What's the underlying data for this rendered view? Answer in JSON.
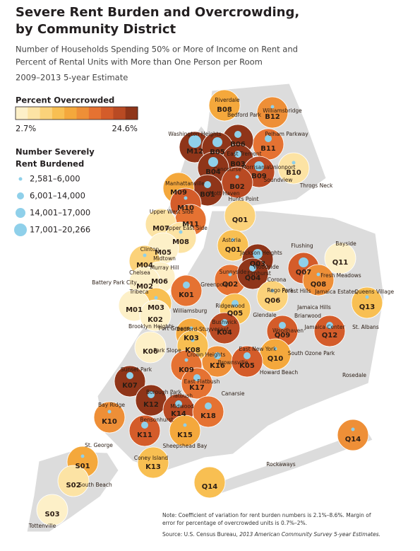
{
  "header": {
    "title_lines": [
      "Severe Rent Burden and Overcrowding,",
      "by Community District"
    ],
    "subtitle_lines": [
      "Number of Households Spending 50% or More of Income on Rent and",
      "Percent of Rental Units with More than One Person per Room"
    ],
    "estimate": "2009–2013 5-year Estimate"
  },
  "legend": {
    "color_title": "Percent Overcrowded",
    "colors": [
      "#fdf0c8",
      "#fce3a4",
      "#fbd27a",
      "#f8bf52",
      "#f4a83c",
      "#ee8f37",
      "#e57232",
      "#d45c2a",
      "#b94a23",
      "#8f3519"
    ],
    "min_label": "2.7%",
    "max_label": "24.6%",
    "size_title_lines": [
      "Number Severely",
      "Rent Burdened"
    ],
    "size_items": [
      "2,581–6,000",
      "6,001–14,000",
      "14,001–17,000",
      "17,001–20,266"
    ],
    "bubble_color": "#8fd0ea"
  },
  "districts": [
    "B08",
    "B12",
    "B11",
    "B06",
    "M12",
    "B05",
    "B03",
    "B04",
    "B10",
    "B09",
    "B02",
    "B01",
    "M09",
    "M10",
    "M11",
    "M07",
    "M08",
    "Q01",
    "Q01",
    "Q03",
    "M05",
    "M04",
    "M06",
    "M02",
    "M03",
    "M01",
    "Q02",
    "Q04",
    "Q07",
    "Q11",
    "K01",
    "Q08",
    "Q06",
    "Q05",
    "Q13",
    "K02",
    "K03",
    "K04",
    "Q09",
    "Q12",
    "K06",
    "K16",
    "K08",
    "Q10",
    "K09",
    "K05",
    "K07",
    "K17",
    "K12",
    "K14",
    "K18",
    "K10",
    "K11",
    "K15",
    "K13",
    "Q14",
    "S01",
    "S02",
    "S03",
    "Q14"
  ],
  "neighborhoods": [
    "Riverdale",
    "Williamsbridge",
    "Bedford Park",
    "Washington Heights",
    "Pelham Parkway",
    "East Tremont",
    "Concourse",
    "Morrisania",
    "Unionport",
    "Soundview",
    "Mott Haven",
    "Hunts Point",
    "Throgs Neck",
    "Manhattanville",
    "Upper West Side",
    "Upper East Side",
    "Astoria",
    "Jackson Heights",
    "Flushing",
    "Bayside",
    "Clinton",
    "Midtown",
    "Murray Hill",
    "Woodside",
    "Sunnyside",
    "Elmhurst",
    "Chelsea",
    "Corona",
    "Fresh Meadows",
    "Battery Park City",
    "Tribeca",
    "Greenpoint",
    "Rego Park",
    "Forest Hills",
    "Jamaica Estates",
    "Queens Village",
    "Jamaica Hills",
    "Williamsburg",
    "Ridgewood",
    "Glendale",
    "Briarwood",
    "Brooklyn Heights",
    "Bushwick",
    "Bedford-Stuyvesant",
    "Fort Greene",
    "Jamaica Center",
    "St. Albans",
    "Woodhaven",
    "Crown Heights",
    "Park Slope",
    "East New York",
    "South Ozone Park",
    "Brownsville",
    "Howard Beach",
    "Rosedale",
    "Sunset Park",
    "East Flatbush",
    "Borough Park",
    "Flatbush",
    "Canarsie",
    "Bay Ridge",
    "Midwood",
    "Bensonhurst",
    "St. George",
    "Sheepshead Bay",
    "Coney Island",
    "Rockaways",
    "South Beach",
    "Tottenville"
  ],
  "note_lines": [
    "Note: Coefficient of variation for rent burden numbers is 2.1%–8.6%. Margin of",
    "error for percentage of overcrowded units is 0.7%–2%."
  ],
  "source": {
    "prefix": "Source: U.S. Census Bureau, ",
    "italic": "2013 American Community Survey 5-year Estimates."
  }
}
